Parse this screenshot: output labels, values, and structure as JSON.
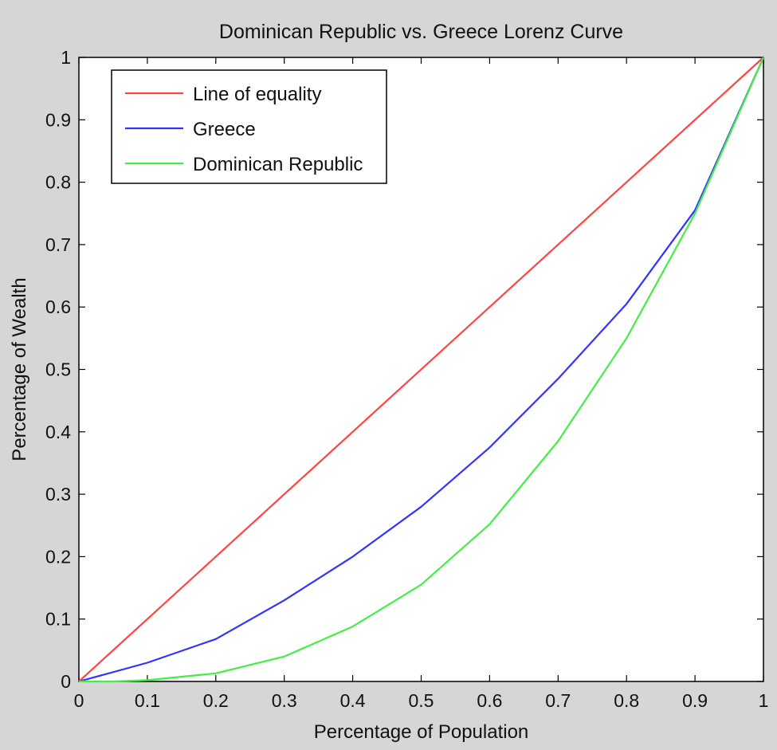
{
  "chart_data": {
    "type": "line",
    "title": "Dominican Republic vs. Greece Lorenz Curve",
    "xlabel": "Percentage of Population",
    "ylabel": "Percentage of Wealth",
    "xlim": [
      0,
      1
    ],
    "ylim": [
      0,
      1
    ],
    "xticks": [
      0,
      0.1,
      0.2,
      0.3,
      0.4,
      0.5,
      0.6,
      0.7,
      0.8,
      0.9,
      1
    ],
    "xtick_labels": [
      "0",
      "0.1",
      "0.2",
      "0.3",
      "0.4",
      "0.5",
      "0.6",
      "0.7",
      "0.8",
      "0.9",
      "1"
    ],
    "yticks": [
      0,
      0.1,
      0.2,
      0.3,
      0.4,
      0.5,
      0.6,
      0.7,
      0.8,
      0.9,
      1
    ],
    "ytick_labels": [
      "0",
      "0.1",
      "0.2",
      "0.3",
      "0.4",
      "0.5",
      "0.6",
      "0.7",
      "0.8",
      "0.9",
      "1"
    ],
    "grid": false,
    "legend_position": "top-left",
    "series": [
      {
        "name": "Line of equality",
        "color": "#ff4444",
        "x": [
          0,
          1
        ],
        "y": [
          0,
          1
        ]
      },
      {
        "name": "Greece",
        "color": "#3333ff",
        "x": [
          0,
          0.1,
          0.2,
          0.3,
          0.4,
          0.5,
          0.6,
          0.7,
          0.8,
          0.9,
          1
        ],
        "y": [
          0,
          0.03,
          0.068,
          0.13,
          0.2,
          0.28,
          0.375,
          0.485,
          0.605,
          0.755,
          1
        ]
      },
      {
        "name": "Dominican Republic",
        "color": "#44ee44",
        "x": [
          0,
          0.05,
          0.1,
          0.2,
          0.3,
          0.4,
          0.5,
          0.6,
          0.7,
          0.8,
          0.9,
          1
        ],
        "y": [
          0,
          0.0,
          0.002,
          0.013,
          0.04,
          0.088,
          0.155,
          0.252,
          0.385,
          0.55,
          0.75,
          1
        ]
      }
    ]
  }
}
